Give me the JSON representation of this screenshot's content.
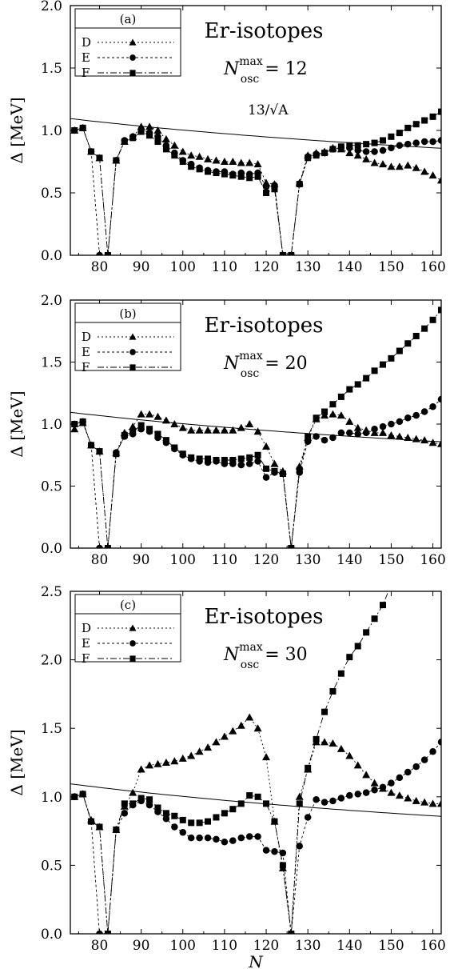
{
  "panels_meta": {
    "common_xlabel": "N",
    "ylabel": "Δ [MeV]"
  },
  "chart_data": [
    {
      "type": "line",
      "panel_label": "(a)",
      "title": "Er-isotopes",
      "subtitle": "N_osc^max = 12",
      "subtitle_parts": {
        "base": "N",
        "sup": "max",
        "sub": "osc",
        "rest": " = 12"
      },
      "annotation": "13/√A",
      "ylabel": "Δ [MeV]",
      "xlabel": "",
      "xlim": [
        73,
        162
      ],
      "ylim": [
        0,
        2.0
      ],
      "xticks": [
        80,
        90,
        100,
        110,
        120,
        130,
        140,
        150,
        160
      ],
      "yticks": [
        "0.0",
        "0.5",
        "1.0",
        "1.5",
        "2.0"
      ],
      "legend": [
        "D",
        "E",
        "F"
      ],
      "reference_curve": {
        "label": "13/√A",
        "formula_coeff": 13,
        "Z": 68
      },
      "series": [
        {
          "name": "D",
          "marker": "triangle",
          "dash": "2,3",
          "x": [
            74,
            76,
            78,
            80,
            82,
            84,
            86,
            88,
            90,
            92,
            94,
            96,
            98,
            100,
            102,
            104,
            106,
            108,
            110,
            112,
            114,
            116,
            118,
            120,
            122,
            124,
            126,
            128,
            130,
            132,
            134,
            136,
            138,
            140,
            142,
            144,
            146,
            148,
            150,
            152,
            154,
            156,
            158,
            160,
            162
          ],
          "y": [
            1.0,
            1.02,
            0.83,
            0.78,
            0,
            0.76,
            0.91,
            0.95,
            1.03,
            1.03,
            1.0,
            0.93,
            0.88,
            0.83,
            0.8,
            0.79,
            0.77,
            0.76,
            0.75,
            0.75,
            0.74,
            0.74,
            0.73,
            0.58,
            0.57,
            0,
            0,
            0.58,
            0.8,
            0.82,
            0.83,
            0.86,
            0.85,
            0.82,
            0.8,
            0.77,
            0.74,
            0.73,
            0.71,
            0.71,
            0.72,
            0.7,
            0.67,
            0.64,
            0.6
          ]
        },
        {
          "name": "E",
          "marker": "circle",
          "dash": "3,3",
          "x": [
            74,
            76,
            78,
            80,
            82,
            84,
            86,
            88,
            90,
            92,
            94,
            96,
            98,
            100,
            102,
            104,
            106,
            108,
            110,
            112,
            114,
            116,
            118,
            120,
            122,
            124,
            126,
            128,
            130,
            132,
            134,
            136,
            138,
            140,
            142,
            144,
            146,
            148,
            150,
            152,
            154,
            156,
            158,
            160,
            162
          ],
          "y": [
            1.0,
            1.02,
            0.83,
            0,
            0,
            0.76,
            0.92,
            0.95,
            1.01,
            0.98,
            0.95,
            0.88,
            0.82,
            0.76,
            0.73,
            0.7,
            0.68,
            0.67,
            0.67,
            0.65,
            0.66,
            0.65,
            0.66,
            0.55,
            0.56,
            0,
            0,
            0.57,
            0.79,
            0.81,
            0.82,
            0.85,
            0.86,
            0.86,
            0.84,
            0.83,
            0.83,
            0.84,
            0.86,
            0.88,
            0.89,
            0.9,
            0.91,
            0.91,
            0.92
          ]
        },
        {
          "name": "F",
          "marker": "square",
          "dash": "8,3,2,3",
          "x": [
            74,
            76,
            78,
            80,
            82,
            84,
            86,
            88,
            90,
            92,
            94,
            96,
            98,
            100,
            102,
            104,
            106,
            108,
            110,
            112,
            114,
            116,
            118,
            120,
            122,
            124,
            126,
            128,
            130,
            132,
            134,
            136,
            138,
            140,
            142,
            144,
            146,
            148,
            150,
            152,
            154,
            156,
            158,
            160,
            162
          ],
          "y": [
            1.0,
            1.02,
            0.83,
            0.78,
            0,
            0.76,
            0.91,
            0.94,
            0.99,
            0.96,
            0.91,
            0.85,
            0.8,
            0.75,
            0.71,
            0.69,
            0.67,
            0.66,
            0.65,
            0.64,
            0.63,
            0.62,
            0.63,
            0.5,
            0.53,
            0,
            0,
            0.57,
            0.78,
            0.8,
            0.82,
            0.85,
            0.87,
            0.88,
            0.88,
            0.89,
            0.9,
            0.92,
            0.95,
            0.98,
            1.02,
            1.05,
            1.08,
            1.11,
            1.15
          ]
        }
      ]
    },
    {
      "type": "line",
      "panel_label": "(b)",
      "title": "Er-isotopes",
      "subtitle": "N_osc^max = 20",
      "subtitle_parts": {
        "base": "N",
        "sup": "max",
        "sub": "osc",
        "rest": " = 20"
      },
      "annotation": "",
      "ylabel": "Δ [MeV]",
      "xlabel": "",
      "xlim": [
        73,
        162
      ],
      "ylim": [
        0,
        2.0
      ],
      "xticks": [
        80,
        90,
        100,
        110,
        120,
        130,
        140,
        150,
        160
      ],
      "yticks": [
        "0.0",
        "0.5",
        "1.0",
        "1.5",
        "2.0"
      ],
      "legend": [
        "D",
        "E",
        "F"
      ],
      "reference_curve": {
        "label": "",
        "formula_coeff": 13,
        "Z": 68
      },
      "series": [
        {
          "name": "D",
          "marker": "triangle",
          "dash": "2,3",
          "x": [
            74,
            76,
            78,
            80,
            82,
            84,
            86,
            88,
            90,
            92,
            94,
            96,
            98,
            100,
            102,
            104,
            106,
            108,
            110,
            112,
            114,
            116,
            118,
            120,
            122,
            124,
            126,
            128,
            130,
            132,
            134,
            136,
            138,
            140,
            142,
            144,
            146,
            148,
            150,
            152,
            154,
            156,
            158,
            160,
            162
          ],
          "y": [
            0.96,
            1.01,
            0.83,
            0.78,
            0,
            0.77,
            0.93,
            0.98,
            1.08,
            1.08,
            1.06,
            1.03,
            1.0,
            0.97,
            0.95,
            0.95,
            0.95,
            0.95,
            0.95,
            0.95,
            0.97,
            1.0,
            0.94,
            0.82,
            0.68,
            0.62,
            0,
            0.66,
            0.89,
            1.04,
            1.07,
            1.08,
            1.07,
            1.02,
            0.97,
            0.95,
            0.93,
            0.93,
            0.91,
            0.9,
            0.89,
            0.88,
            0.87,
            0.85,
            0.84
          ]
        },
        {
          "name": "E",
          "marker": "circle",
          "dash": "3,3",
          "x": [
            74,
            76,
            78,
            80,
            82,
            84,
            86,
            88,
            90,
            92,
            94,
            96,
            98,
            100,
            102,
            104,
            106,
            108,
            110,
            112,
            114,
            116,
            118,
            120,
            122,
            124,
            126,
            128,
            130,
            132,
            134,
            136,
            138,
            140,
            142,
            144,
            146,
            148,
            150,
            152,
            154,
            156,
            158,
            160,
            162
          ],
          "y": [
            1.0,
            1.02,
            0.83,
            0,
            0,
            0.77,
            0.9,
            0.92,
            0.96,
            0.94,
            0.89,
            0.85,
            0.8,
            0.75,
            0.72,
            0.7,
            0.69,
            0.7,
            0.68,
            0.68,
            0.67,
            0.68,
            0.7,
            0.57,
            0.61,
            0.6,
            0,
            0.61,
            0.86,
            0.9,
            0.87,
            0.89,
            0.93,
            0.93,
            0.92,
            0.93,
            0.96,
            0.98,
            1.0,
            1.02,
            1.05,
            1.07,
            1.1,
            1.14,
            1.2
          ]
        },
        {
          "name": "F",
          "marker": "square",
          "dash": "8,3,2,3",
          "x": [
            74,
            76,
            78,
            80,
            82,
            84,
            86,
            88,
            90,
            92,
            94,
            96,
            98,
            100,
            102,
            104,
            106,
            108,
            110,
            112,
            114,
            116,
            118,
            120,
            122,
            124,
            126,
            128,
            130,
            132,
            134,
            136,
            138,
            140,
            142,
            144,
            146,
            148,
            150,
            152,
            154,
            156,
            158,
            160,
            162
          ],
          "y": [
            1.0,
            1.02,
            0.83,
            0.78,
            0,
            0.76,
            0.91,
            0.94,
            0.99,
            0.96,
            0.92,
            0.87,
            0.81,
            0.76,
            0.73,
            0.72,
            0.72,
            0.71,
            0.71,
            0.71,
            0.72,
            0.73,
            0.75,
            0.64,
            0.62,
            0.6,
            0,
            0.63,
            0.9,
            1.05,
            1.1,
            1.16,
            1.22,
            1.28,
            1.32,
            1.37,
            1.43,
            1.48,
            1.53,
            1.59,
            1.65,
            1.71,
            1.77,
            1.84,
            1.92
          ]
        }
      ]
    },
    {
      "type": "line",
      "panel_label": "(c)",
      "title": "Er-isotopes",
      "subtitle": "N_osc^max = 30",
      "subtitle_parts": {
        "base": "N",
        "sup": "max",
        "sub": "osc",
        "rest": " = 30"
      },
      "annotation": "",
      "ylabel": "Δ [MeV]",
      "xlabel": "N",
      "xlim": [
        73,
        162
      ],
      "ylim": [
        0,
        2.5
      ],
      "xticks": [
        80,
        90,
        100,
        110,
        120,
        130,
        140,
        150,
        160
      ],
      "yticks": [
        "0.0",
        "0.5",
        "1.0",
        "1.5",
        "2.0",
        "2.5"
      ],
      "legend": [
        "D",
        "E",
        "F"
      ],
      "reference_curve": {
        "label": "",
        "formula_coeff": 13,
        "Z": 68
      },
      "series": [
        {
          "name": "D",
          "marker": "triangle",
          "dash": "2,3",
          "x": [
            74,
            76,
            78,
            80,
            82,
            84,
            86,
            88,
            90,
            92,
            94,
            96,
            98,
            100,
            102,
            104,
            106,
            108,
            110,
            112,
            114,
            116,
            118,
            120,
            122,
            124,
            126,
            128,
            130,
            132,
            134,
            136,
            138,
            140,
            142,
            144,
            146,
            148,
            150,
            152,
            154,
            156,
            158,
            160,
            162
          ],
          "y": [
            1.0,
            1.02,
            0.83,
            0.78,
            0,
            0.76,
            0.93,
            1.03,
            1.2,
            1.23,
            1.24,
            1.25,
            1.26,
            1.28,
            1.3,
            1.33,
            1.36,
            1.4,
            1.44,
            1.48,
            1.52,
            1.58,
            1.5,
            1.29,
            0.82,
            0.48,
            0,
            1.0,
            1.2,
            1.4,
            1.4,
            1.39,
            1.35,
            1.3,
            1.23,
            1.16,
            1.1,
            1.06,
            1.03,
            1.01,
            0.99,
            0.97,
            0.96,
            0.95,
            0.95
          ]
        },
        {
          "name": "E",
          "marker": "circle",
          "dash": "3,3",
          "x": [
            74,
            76,
            78,
            80,
            82,
            84,
            86,
            88,
            90,
            92,
            94,
            96,
            98,
            100,
            102,
            104,
            106,
            108,
            110,
            112,
            114,
            116,
            118,
            120,
            122,
            124,
            126,
            128,
            130,
            132,
            134,
            136,
            138,
            140,
            142,
            144,
            146,
            148,
            150,
            152,
            154,
            156,
            158,
            160,
            162
          ],
          "y": [
            1.0,
            1.02,
            0.82,
            0,
            0,
            0.76,
            0.88,
            0.94,
            0.97,
            0.94,
            0.89,
            0.84,
            0.78,
            0.74,
            0.7,
            0.7,
            0.7,
            0.69,
            0.67,
            0.68,
            0.7,
            0.71,
            0.71,
            0.61,
            0.6,
            0.59,
            0,
            0.64,
            0.85,
            0.98,
            0.96,
            0.97,
            0.99,
            1.01,
            1.02,
            1.03,
            1.05,
            1.07,
            1.1,
            1.14,
            1.18,
            1.22,
            1.27,
            1.33,
            1.4
          ]
        },
        {
          "name": "F",
          "marker": "square",
          "dash": "8,3,2,3",
          "x": [
            74,
            76,
            78,
            80,
            82,
            84,
            86,
            88,
            90,
            92,
            94,
            96,
            98,
            100,
            102,
            104,
            106,
            108,
            110,
            112,
            114,
            116,
            118,
            120,
            122,
            124,
            126,
            128,
            130,
            132,
            134,
            136,
            138,
            140,
            142,
            144,
            146,
            148,
            150
          ],
          "y": [
            1.0,
            1.02,
            0.82,
            0.78,
            0,
            0.76,
            0.95,
            0.95,
            0.99,
            0.98,
            0.92,
            0.88,
            0.86,
            0.83,
            0.81,
            0.81,
            0.82,
            0.85,
            0.88,
            0.91,
            0.95,
            1.01,
            1.0,
            0.95,
            0.82,
            0.5,
            0,
            0.95,
            1.21,
            1.42,
            1.62,
            1.77,
            1.9,
            2.02,
            2.1,
            2.2,
            2.3,
            2.4,
            2.55
          ]
        }
      ]
    }
  ]
}
